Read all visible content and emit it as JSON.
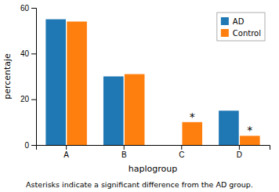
{
  "chart_data": {
    "type": "bar",
    "categories": [
      "A",
      "B",
      "C",
      "D"
    ],
    "series": [
      {
        "name": "AD",
        "values": [
          55,
          30,
          0,
          15
        ]
      },
      {
        "name": "Control",
        "values": [
          54,
          31,
          10,
          4
        ]
      }
    ],
    "ylabel": "percentaje",
    "xlabel": "haplogroup",
    "ylim": [
      0,
      60
    ],
    "yticks": [
      0,
      20,
      40,
      60
    ],
    "grid": false,
    "legend": "upper right",
    "annotations": [
      {
        "text": "*",
        "category": "C",
        "series": "Control"
      },
      {
        "text": "*",
        "category": "D",
        "series": "Control"
      }
    ],
    "caption": "Asterisks indicate a significant difference from the AD group."
  }
}
